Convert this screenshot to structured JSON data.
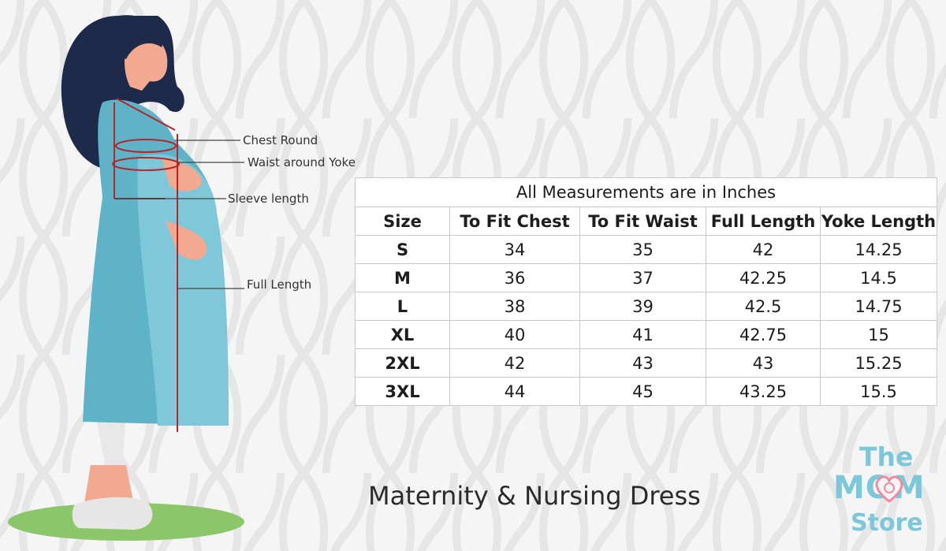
{
  "callouts": {
    "chest_round": "Chest Round",
    "waist_around_yoke": "Waist around Yoke",
    "sleeve_length": "Sleeve length",
    "full_length": "Full Length"
  },
  "table": {
    "caption": "All Measurements are in Inches",
    "headers": [
      "Size",
      "To Fit Chest",
      "To Fit Waist",
      "Full Length",
      "Yoke Length"
    ],
    "rows": [
      [
        "S",
        "34",
        "35",
        "42",
        "14.25"
      ],
      [
        "M",
        "36",
        "37",
        "42.25",
        "14.5"
      ],
      [
        "L",
        "38",
        "39",
        "42.5",
        "14.75"
      ],
      [
        "XL",
        "40",
        "41",
        "42.75",
        "15"
      ],
      [
        "2XL",
        "42",
        "43",
        "43",
        "15.25"
      ],
      [
        "3XL",
        "44",
        "45",
        "43.25",
        "15.5"
      ]
    ]
  },
  "footer": {
    "title": "Maternity & Nursing  Dress"
  },
  "logo": {
    "line1": "The",
    "line2": "MOM",
    "line3": "Store"
  },
  "colors": {
    "dress": "#5fb3c9",
    "dress_light": "#7ec8da",
    "hair": "#1e2a4a",
    "skin": "#f2a98f",
    "measure_line": "#b3262c",
    "logo": "#7cc7d8",
    "logo_heart": "#f08a9e",
    "ground": "#8cc66a"
  }
}
